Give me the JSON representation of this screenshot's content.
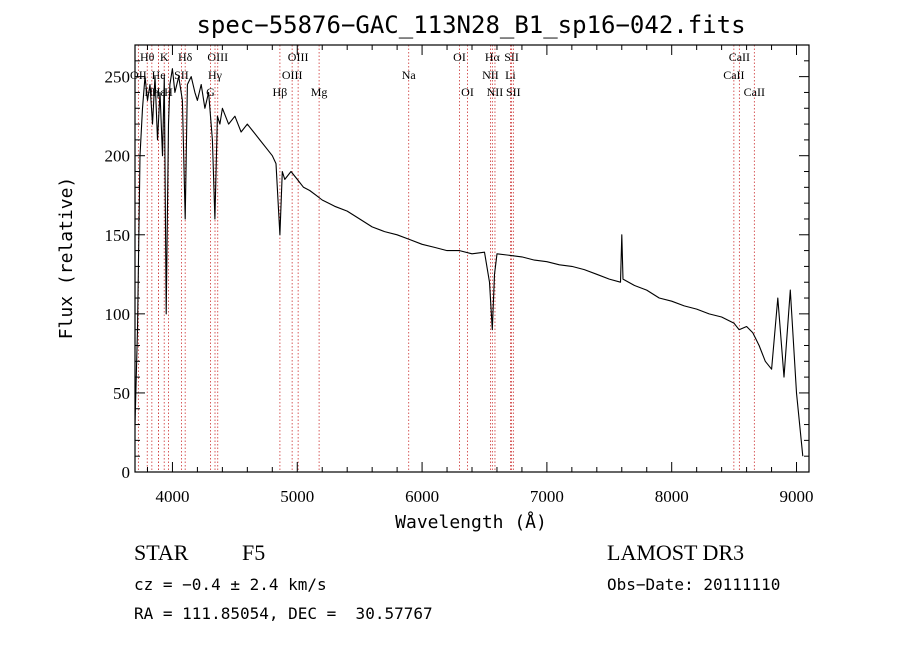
{
  "chart_data": {
    "type": "line",
    "title": "spec−55876−GAC_113N28_B1_sp16−042.fits",
    "xlabel": "Wavelength (Å)",
    "ylabel": "Flux (relative)",
    "xlim": [
      3700,
      9100
    ],
    "ylim": [
      0,
      2700
    ],
    "xticks": [
      4000,
      5000,
      6000,
      7000,
      8000,
      9000
    ],
    "yticks": [
      0,
      500,
      1000,
      1500,
      2000,
      2500
    ],
    "ytick_labels": [
      "0",
      "50",
      "100",
      "150",
      "200",
      "250"
    ],
    "grid": false,
    "series": [
      {
        "x": [
          3700,
          3720,
          3740,
          3760,
          3780,
          3800,
          3820,
          3840,
          3860,
          3880,
          3900,
          3920,
          3935,
          3950,
          3968,
          3980,
          4000,
          4020,
          4050,
          4080,
          4102,
          4120,
          4150,
          4180,
          4200,
          4230,
          4260,
          4290,
          4320,
          4340,
          4360,
          4380,
          4400,
          4450,
          4500,
          4550,
          4600,
          4650,
          4700,
          4750,
          4800,
          4830,
          4861,
          4880,
          4900,
          4950,
          5000,
          5050,
          5100,
          5150,
          5200,
          5250,
          5300,
          5400,
          5500,
          5600,
          5700,
          5800,
          5900,
          6000,
          6100,
          6200,
          6300,
          6400,
          6500,
          6540,
          6563,
          6580,
          6600,
          6700,
          6800,
          6900,
          7000,
          7100,
          7200,
          7300,
          7400,
          7500,
          7590,
          7600,
          7610,
          7700,
          7800,
          7900,
          8000,
          8100,
          8200,
          8300,
          8400,
          8500,
          8540,
          8600,
          8650,
          8700,
          8750,
          8800,
          8850,
          8900,
          8950,
          9000,
          9050
        ],
        "y": [
          300,
          900,
          2000,
          2300,
          2500,
          2350,
          2450,
          2200,
          2500,
          2100,
          2400,
          2000,
          2500,
          1000,
          2200,
          2450,
          2550,
          2400,
          2500,
          2350,
          1600,
          2450,
          2500,
          2400,
          2350,
          2450,
          2300,
          2400,
          2100,
          1600,
          2250,
          2200,
          2300,
          2200,
          2250,
          2150,
          2200,
          2150,
          2100,
          2050,
          2000,
          1950,
          1500,
          1900,
          1850,
          1900,
          1850,
          1800,
          1780,
          1750,
          1720,
          1700,
          1680,
          1650,
          1600,
          1550,
          1520,
          1500,
          1470,
          1440,
          1420,
          1400,
          1400,
          1380,
          1390,
          1200,
          900,
          1250,
          1380,
          1370,
          1360,
          1340,
          1330,
          1310,
          1300,
          1280,
          1250,
          1220,
          1200,
          1500,
          1220,
          1180,
          1150,
          1100,
          1080,
          1050,
          1030,
          1000,
          980,
          940,
          900,
          920,
          880,
          800,
          700,
          650,
          1100,
          600,
          1150,
          500,
          100
        ]
      }
    ],
    "lines": [
      {
        "label": "Hθ",
        "x": 3798,
        "row": 0
      },
      {
        "label": "OII",
        "x": 3727,
        "row": 1
      },
      {
        "label": "Hη",
        "x": 3835,
        "row": 2
      },
      {
        "label": "He",
        "x": 3889,
        "row": 1
      },
      {
        "label": "Hε",
        "x": 3889,
        "row": 2
      },
      {
        "label": "K",
        "x": 3934,
        "row": 0
      },
      {
        "label": "H",
        "x": 3968,
        "row": 2
      },
      {
        "label": "SII",
        "x": 4072,
        "row": 1
      },
      {
        "label": "Hδ",
        "x": 4102,
        "row": 0
      },
      {
        "label": "OIII",
        "x": 4363,
        "row": 0
      },
      {
        "label": "Hγ",
        "x": 4341,
        "row": 1
      },
      {
        "label": "G",
        "x": 4305,
        "row": 2
      },
      {
        "label": "Hβ",
        "x": 4861,
        "row": 2
      },
      {
        "label": "OIII",
        "x": 5007,
        "row": 0
      },
      {
        "label": "OIII",
        "x": 4959,
        "row": 1
      },
      {
        "label": "Mg",
        "x": 5175,
        "row": 2
      },
      {
        "label": "Na",
        "x": 5893,
        "row": 1
      },
      {
        "label": "OI",
        "x": 6300,
        "row": 0
      },
      {
        "label": "OI",
        "x": 6364,
        "row": 2
      },
      {
        "label": "Hα",
        "x": 6563,
        "row": 0
      },
      {
        "label": "NII",
        "x": 6548,
        "row": 1
      },
      {
        "label": "NII",
        "x": 6584,
        "row": 2
      },
      {
        "label": "SII",
        "x": 6717,
        "row": 0
      },
      {
        "label": "Li",
        "x": 6708,
        "row": 1
      },
      {
        "label": "SII",
        "x": 6731,
        "row": 2
      },
      {
        "label": "CaII",
        "x": 8542,
        "row": 0
      },
      {
        "label": "CaII",
        "x": 8498,
        "row": 1
      },
      {
        "label": "CaII",
        "x": 8662,
        "row": 2
      }
    ]
  },
  "info": {
    "object_class": "STAR",
    "subclass": "F5",
    "survey": "LAMOST DR3",
    "cz": "cz = −0.4 ± 2.4 km/s",
    "obs_date": "Obs−Date: 20111110",
    "coords": "RA = 111.85054, DEC =  30.57767"
  }
}
